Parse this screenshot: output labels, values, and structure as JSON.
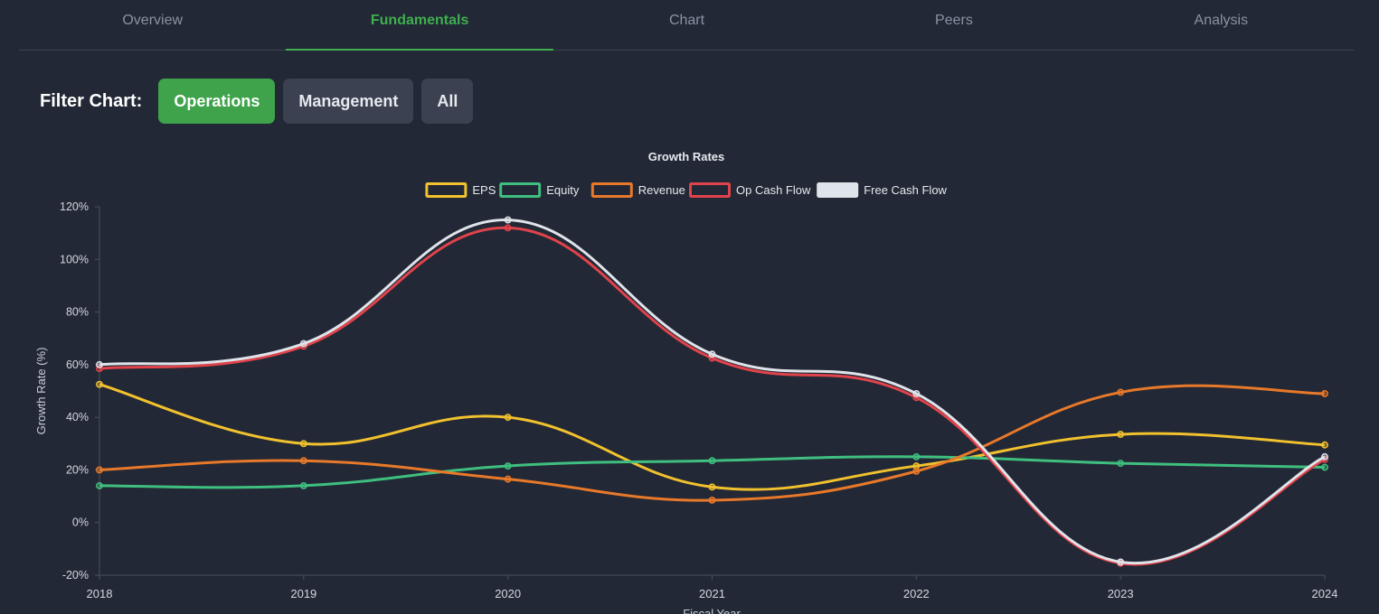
{
  "tabs": [
    {
      "label": "Overview",
      "active": false
    },
    {
      "label": "Fundamentals",
      "active": true
    },
    {
      "label": "Chart",
      "active": false
    },
    {
      "label": "Peers",
      "active": false
    },
    {
      "label": "Analysis",
      "active": false
    }
  ],
  "filter": {
    "label": "Filter Chart:",
    "buttons": [
      {
        "label": "Operations",
        "active": true
      },
      {
        "label": "Management",
        "active": false
      },
      {
        "label": "All",
        "active": false
      }
    ]
  },
  "colors": {
    "accent": "#3fae4f",
    "EPS": "#f2c12e",
    "Equity": "#3fbf7f",
    "Revenue": "#e8792a",
    "Op Cash Flow": "#e0434b",
    "Free Cash Flow": "#dfe3ea"
  },
  "chart_data": {
    "type": "line",
    "title": "Growth Rates",
    "xlabel": "Fiscal Year",
    "ylabel": "Growth Rate (%)",
    "x": [
      "2018",
      "2019",
      "2020",
      "2021",
      "2022",
      "2023",
      "2024"
    ],
    "ylim": [
      -20,
      120
    ],
    "yticks": [
      "120%",
      "100%",
      "80%",
      "60%",
      "40%",
      "20%",
      "0%",
      "-20%"
    ],
    "ytick_values": [
      120,
      100,
      80,
      60,
      40,
      20,
      0,
      -20
    ],
    "legend_position": "top-center",
    "grid": false,
    "series": [
      {
        "name": "EPS",
        "values": [
          52.5,
          30,
          40,
          13.5,
          21.5,
          33.5,
          29.5
        ]
      },
      {
        "name": "Equity",
        "values": [
          14,
          14,
          21.5,
          23.5,
          25,
          22.5,
          21
        ]
      },
      {
        "name": "Revenue",
        "values": [
          20,
          23.5,
          16.5,
          8.5,
          19.5,
          49.5,
          49
        ]
      },
      {
        "name": "Op Cash Flow",
        "values": [
          58.5,
          67,
          112,
          62.5,
          47.5,
          -15.5,
          24
        ]
      },
      {
        "name": "Free Cash Flow",
        "values": [
          60,
          68,
          115,
          64,
          49,
          -15,
          25
        ]
      }
    ]
  }
}
